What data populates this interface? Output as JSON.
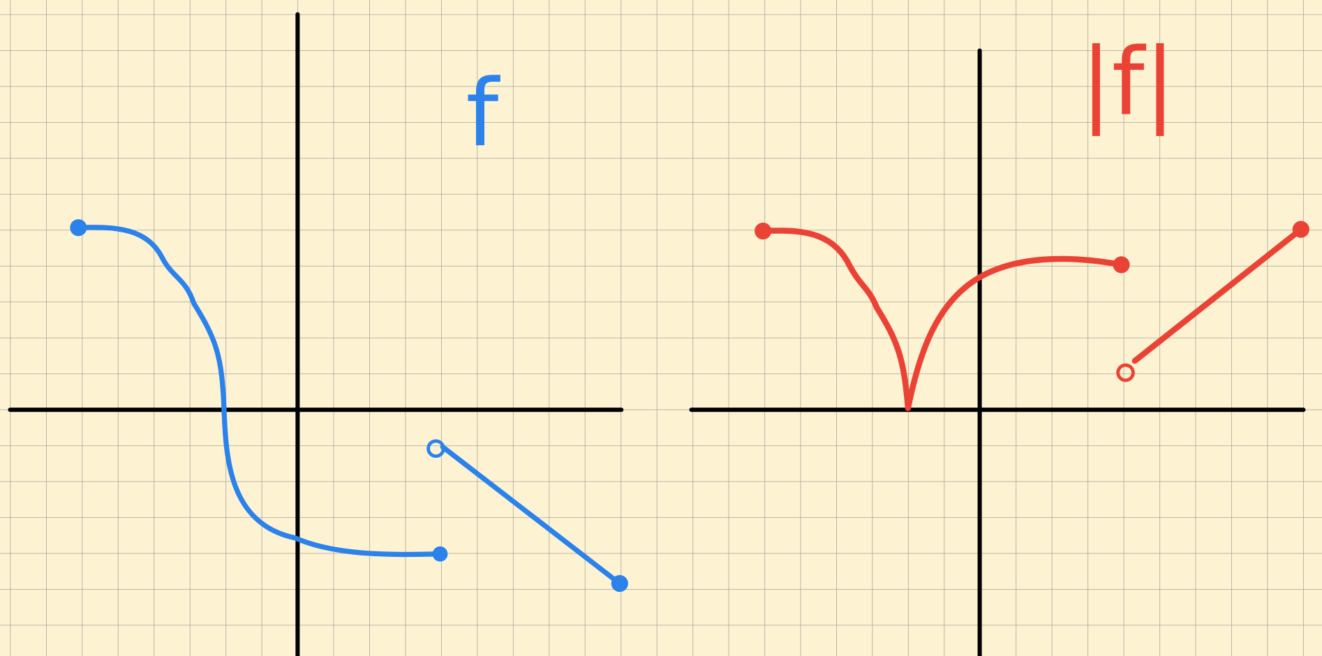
{
  "labels": {
    "left": "f",
    "right": "|f|"
  }
}
